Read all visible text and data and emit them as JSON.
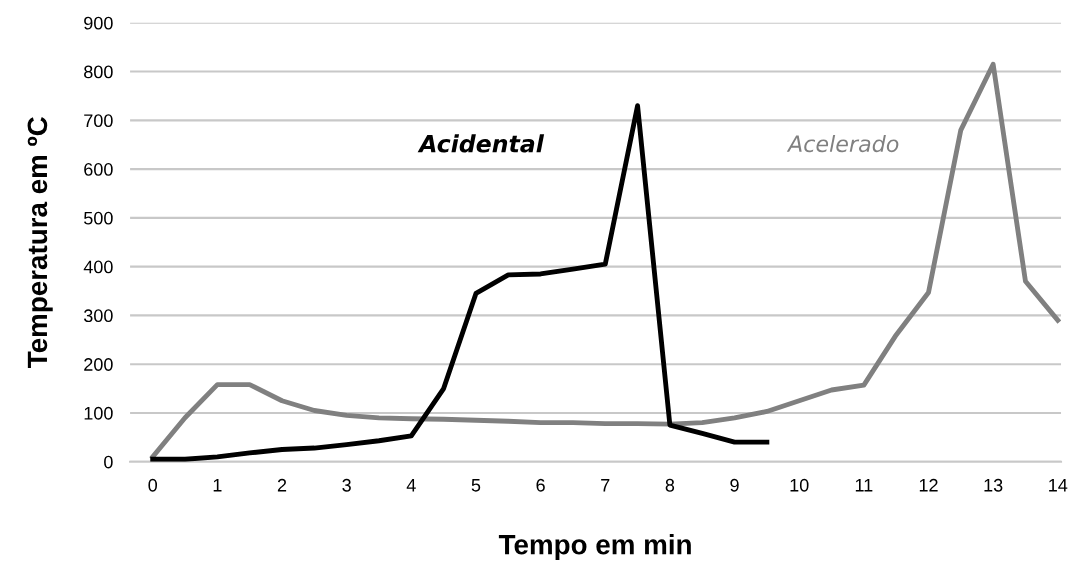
{
  "chart_data": {
    "type": "line",
    "xlabel": "Tempo em min",
    "ylabel": "Temperatura em ºC",
    "xlim": [
      -0.35,
      14.05
    ],
    "xticks": [
      0,
      1,
      2,
      3,
      4,
      5,
      6,
      7,
      8,
      9,
      10,
      11,
      12,
      13,
      14
    ],
    "ylim": [
      0,
      900
    ],
    "yticks": [
      0,
      100,
      200,
      300,
      400,
      500,
      600,
      700,
      800,
      900
    ],
    "grid": "y",
    "legend": false,
    "marker": "none",
    "line_style": "solid",
    "series": [
      {
        "name": "Acidental",
        "color": "#000000",
        "x": [
          0,
          0.5,
          1,
          1.5,
          2,
          2.5,
          3,
          3.5,
          4,
          4.5,
          5,
          5.5,
          6,
          6.5,
          7,
          7.5,
          8,
          8.5,
          9,
          9.5
        ],
        "values": [
          5,
          5,
          10,
          18,
          25,
          28,
          35,
          43,
          53,
          150,
          345,
          383,
          385,
          395,
          405,
          730,
          75,
          58,
          40,
          40
        ]
      },
      {
        "name": "Acelerado",
        "color": "#808080",
        "x": [
          0,
          0.5,
          1,
          1.5,
          2,
          2.5,
          3,
          3.5,
          4,
          4.5,
          5,
          5.5,
          6,
          6.5,
          7,
          7.5,
          8,
          8.5,
          9,
          9.5,
          10,
          10.5,
          11,
          11.5,
          12,
          12.5,
          13,
          13.5,
          14
        ],
        "values": [
          10,
          90,
          158,
          158,
          125,
          105,
          95,
          90,
          88,
          87,
          85,
          83,
          80,
          80,
          78,
          78,
          77,
          80,
          90,
          103,
          125,
          147,
          157,
          260,
          347,
          680,
          815,
          370,
          290
        ]
      }
    ]
  }
}
